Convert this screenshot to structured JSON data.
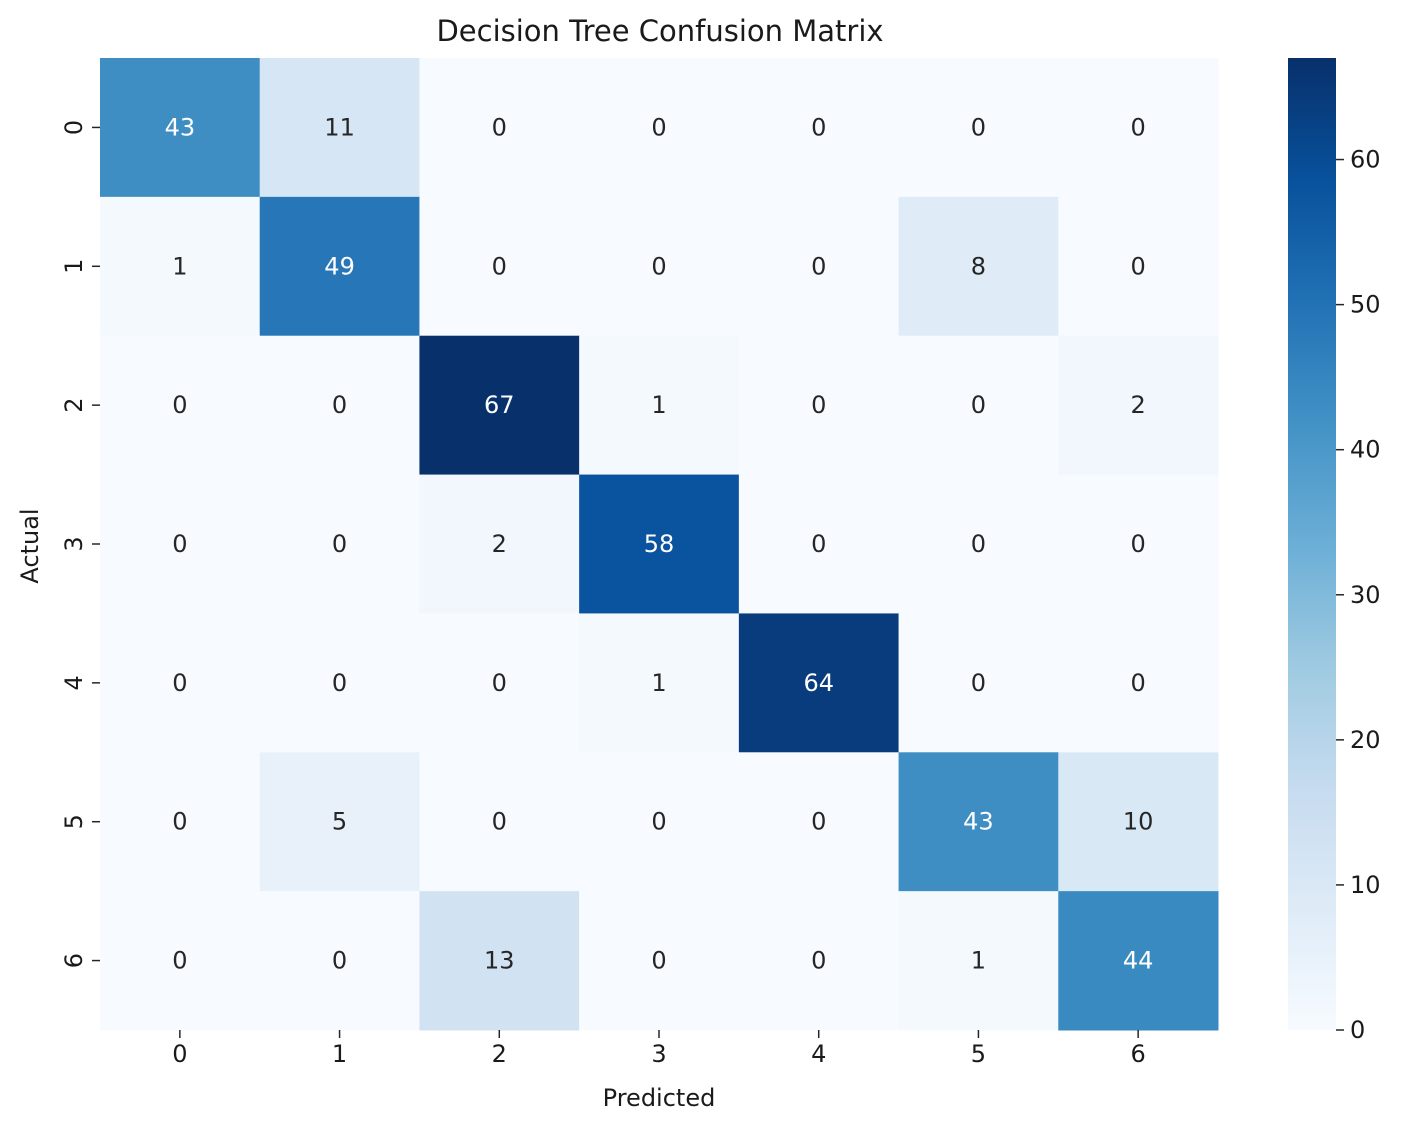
{
  "chart_data": {
    "type": "heatmap",
    "title": "Decision Tree Confusion Matrix",
    "xlabel": "Predicted",
    "ylabel": "Actual",
    "x_categories": [
      "0",
      "1",
      "2",
      "3",
      "4",
      "5",
      "6"
    ],
    "y_categories": [
      "0",
      "1",
      "2",
      "3",
      "4",
      "5",
      "6"
    ],
    "values": [
      [
        43,
        11,
        0,
        0,
        0,
        0,
        0
      ],
      [
        1,
        49,
        0,
        0,
        0,
        8,
        0
      ],
      [
        0,
        0,
        67,
        1,
        0,
        0,
        2
      ],
      [
        0,
        0,
        2,
        58,
        0,
        0,
        0
      ],
      [
        0,
        0,
        0,
        1,
        64,
        0,
        0
      ],
      [
        0,
        5,
        0,
        0,
        0,
        43,
        10
      ],
      [
        0,
        0,
        13,
        0,
        0,
        1,
        44
      ]
    ],
    "colorbar": {
      "range": [
        0,
        67
      ],
      "ticks": [
        0,
        10,
        20,
        30,
        40,
        50,
        60
      ],
      "colormap": "Blues",
      "low_color": "#f7fbff",
      "high_color": "#08306b"
    },
    "grid": false,
    "legend": "colorbar-right"
  }
}
